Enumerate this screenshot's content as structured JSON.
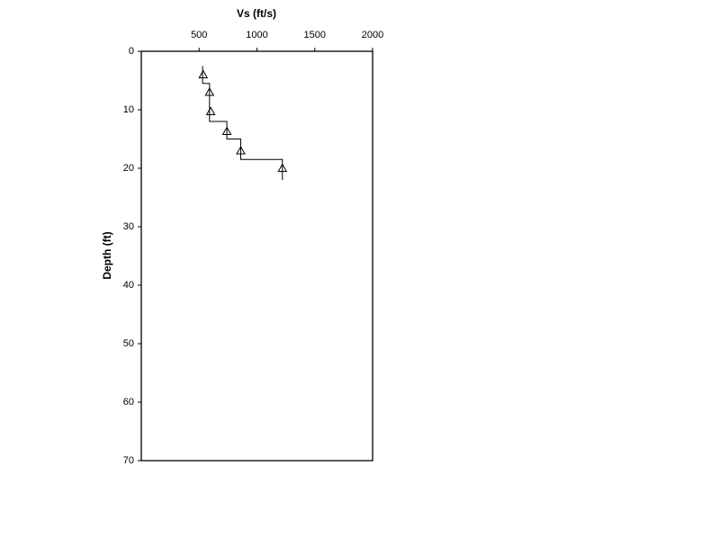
{
  "chart_data": {
    "type": "scatter",
    "xlabel": "Vs (ft/s)",
    "ylabel": "Depth (ft)",
    "xlim": [
      0,
      2000
    ],
    "xticks": [
      500,
      1000,
      1500,
      2000
    ],
    "ylim": [
      0,
      70
    ],
    "yticks": [
      0,
      10,
      20,
      30,
      40,
      50,
      60,
      70
    ],
    "y_inverted": true,
    "x_axis_position": "top",
    "color": "#000000",
    "series": [
      {
        "marker": "triangle",
        "x": [
          535,
          590,
          600,
          740,
          860,
          1220
        ],
        "y": [
          4,
          7,
          10.3,
          13.7,
          17,
          20
        ]
      },
      {
        "marker": "step-line",
        "x": [
          530,
          530,
          590,
          590,
          740,
          740,
          860,
          860,
          1220,
          1220
        ],
        "y": [
          2.5,
          5.5,
          5.5,
          12,
          12,
          15,
          15,
          18.5,
          18.5,
          22
        ]
      }
    ]
  }
}
